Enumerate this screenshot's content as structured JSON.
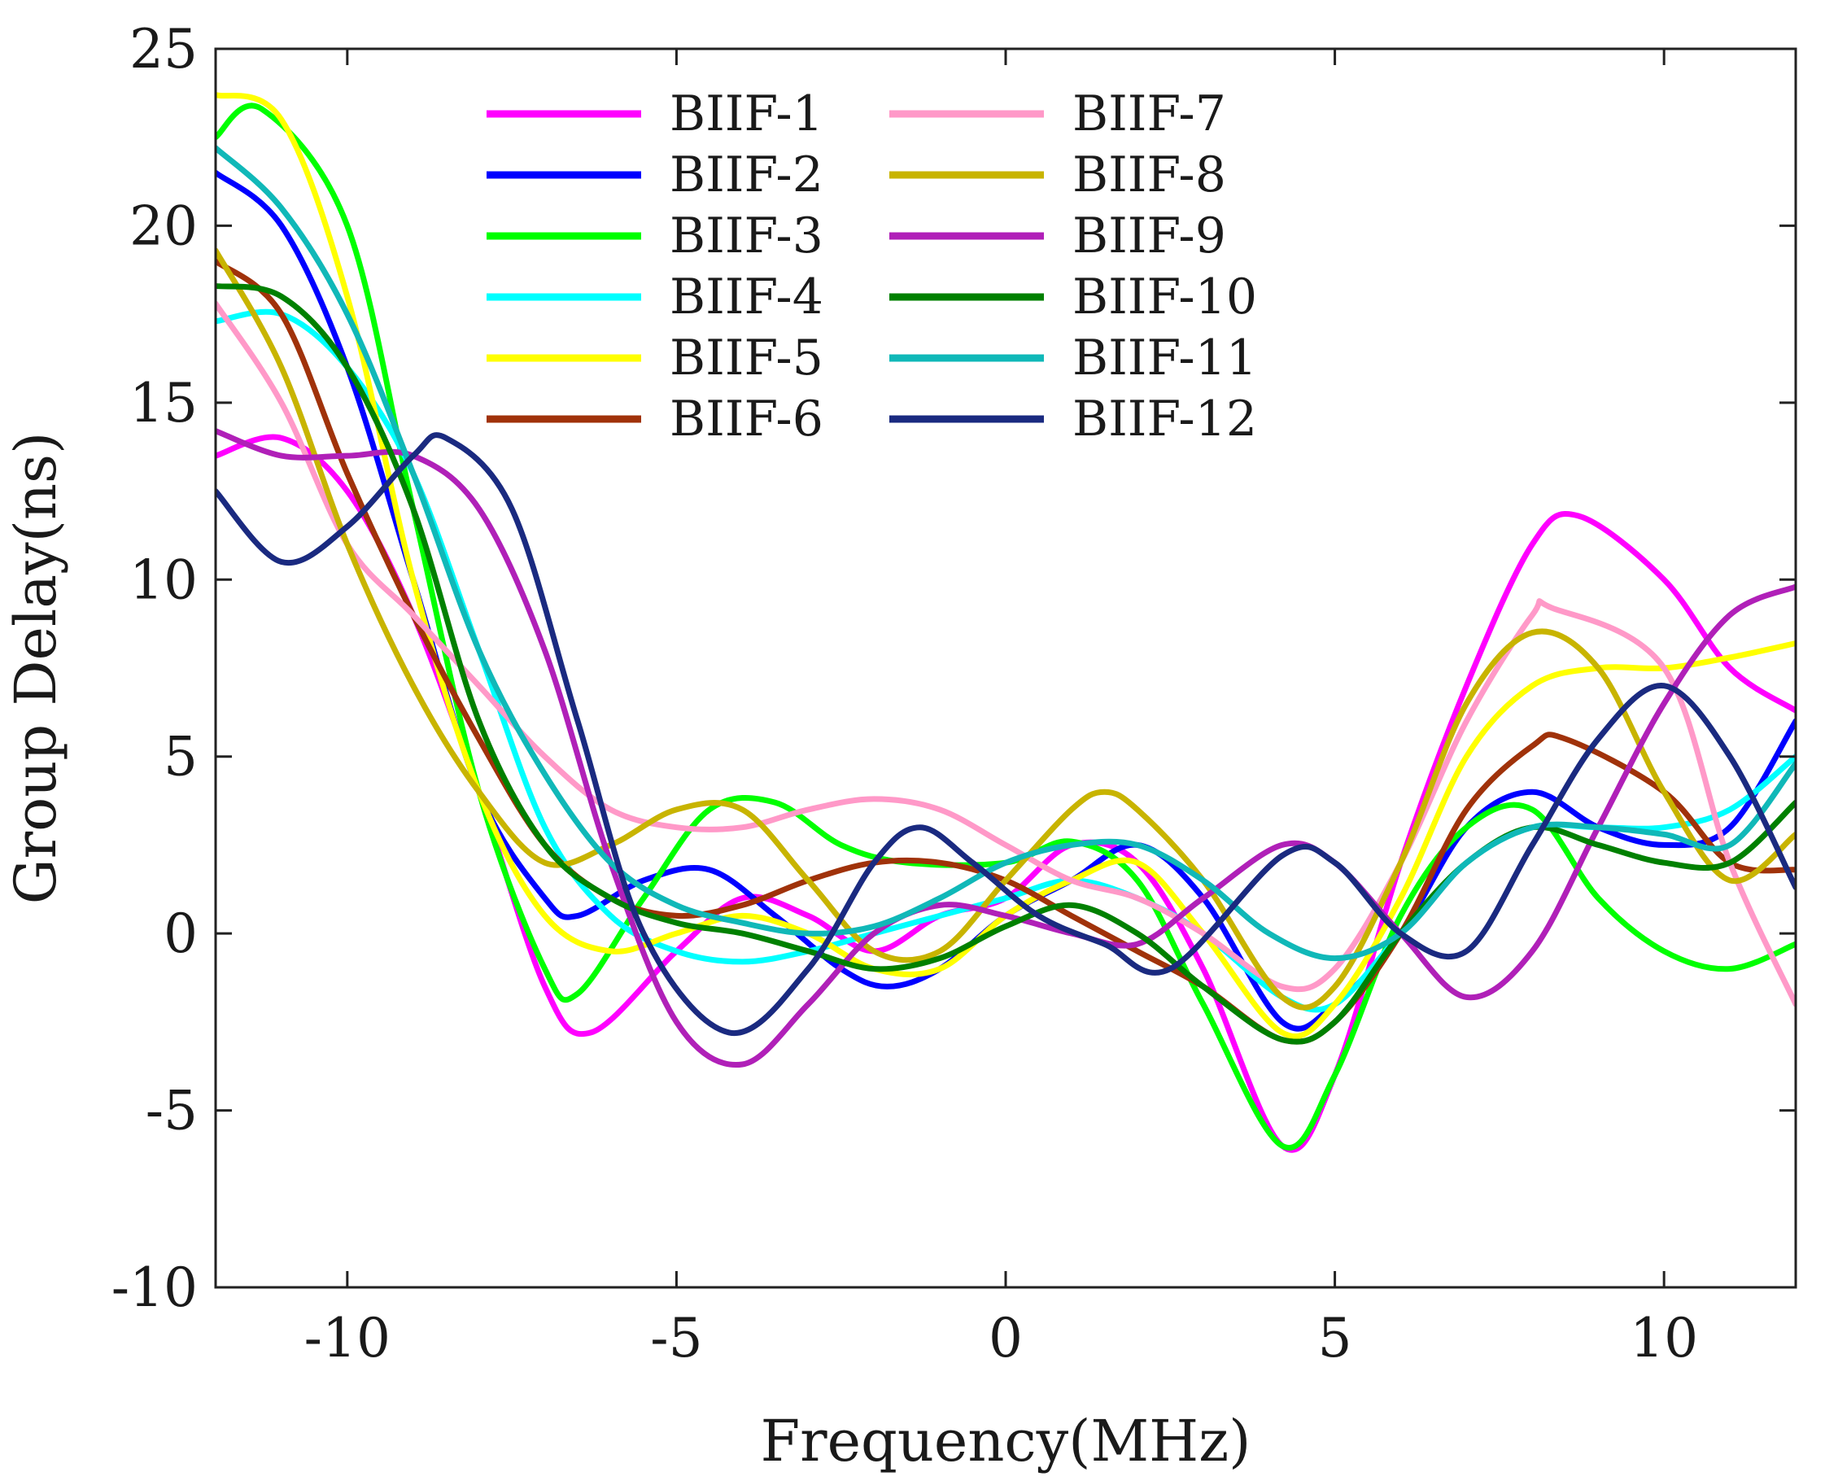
{
  "chart_data": {
    "type": "line",
    "title": "",
    "xlabel": "Frequency(MHz)",
    "ylabel": "Group Delay(ns)",
    "xlim": [
      -12,
      12
    ],
    "ylim": [
      -10,
      25
    ],
    "xticks": [
      -10,
      -5,
      0,
      5,
      10
    ],
    "xtick_labels": [
      "-10",
      "-5",
      "0",
      "5",
      "10"
    ],
    "yticks": [
      -10,
      -5,
      0,
      5,
      10,
      15,
      20,
      25
    ],
    "ytick_labels": [
      "-10",
      "-5",
      "0",
      "5",
      "10",
      "15",
      "20",
      "25"
    ],
    "grid": false,
    "legend_position": "top-center",
    "series": [
      {
        "name": "BIIF-1",
        "color": "#ff00ff",
        "x": [
          -12,
          -11,
          -10,
          -9,
          -8,
          -7,
          -6.3,
          -5,
          -4,
          -3,
          -2,
          -1,
          0,
          1,
          2,
          3,
          4.2,
          5,
          6,
          7,
          8,
          8.7,
          10,
          11,
          12
        ],
        "y": [
          13.5,
          14,
          12.5,
          9,
          4,
          -1.5,
          -2.8,
          -0.5,
          1,
          0.5,
          -0.5,
          0.5,
          1,
          2.5,
          2,
          -1,
          -6,
          -4,
          2,
          7,
          11,
          11.8,
          10,
          7.5,
          6.3
        ]
      },
      {
        "name": "BIIF-2",
        "color": "#0000ff",
        "x": [
          -12,
          -11,
          -10,
          -9,
          -8,
          -7,
          -6.5,
          -5.5,
          -4.5,
          -3.5,
          -2.5,
          -1.8,
          -1,
          0,
          1,
          2,
          3,
          4.2,
          5,
          6,
          7,
          8,
          9,
          10,
          11,
          12
        ],
        "y": [
          21.5,
          20,
          16,
          10,
          4,
          1,
          0.5,
          1.5,
          1.8,
          0.5,
          -1,
          -1.5,
          -1,
          0.5,
          1.5,
          2.5,
          1,
          -2.5,
          -2,
          0,
          3,
          4,
          3,
          2.5,
          3,
          6
        ]
      },
      {
        "name": "BIIF-3",
        "color": "#00ff00",
        "x": [
          -12,
          -11.3,
          -10,
          -9,
          -8,
          -7,
          -6.5,
          -5.5,
          -4.5,
          -3.5,
          -2.5,
          -1.5,
          0,
          1,
          2,
          3,
          4.2,
          5,
          6,
          7,
          8,
          9,
          10,
          11,
          12
        ],
        "y": [
          22.5,
          23.3,
          20,
          12,
          4,
          -1,
          -1.7,
          1,
          3.5,
          3.7,
          2.5,
          2,
          2,
          2.6,
          1.5,
          -2,
          -6,
          -4,
          0.5,
          3,
          3.5,
          1,
          -0.5,
          -1,
          -0.3
        ]
      },
      {
        "name": "BIIF-4",
        "color": "#00ffff",
        "x": [
          -12,
          -11,
          -10,
          -9,
          -8,
          -7,
          -6,
          -5,
          -4,
          -3,
          -2,
          -1,
          0,
          1,
          2,
          3,
          4.2,
          5,
          6,
          7,
          8,
          9,
          10,
          11,
          12
        ],
        "y": [
          17.3,
          17.5,
          16,
          13,
          8,
          3,
          0.5,
          -0.5,
          -0.8,
          -0.5,
          0,
          0.5,
          1,
          1.5,
          1,
          0,
          -1.8,
          -2,
          0,
          2,
          3,
          3,
          3,
          3.5,
          5
        ]
      },
      {
        "name": "BIIF-5",
        "color": "#ffff00",
        "x": [
          -12,
          -11,
          -10,
          -9,
          -8,
          -7,
          -6,
          -5,
          -4,
          -3,
          -2,
          -1,
          0,
          1,
          2,
          3,
          4.2,
          5,
          6,
          7,
          8,
          9,
          10,
          11,
          12
        ],
        "y": [
          23.7,
          23,
          18,
          10,
          4,
          0.5,
          -0.5,
          0,
          0.5,
          0,
          -1,
          -1,
          0.5,
          1.5,
          2,
          0,
          -2.8,
          -2,
          1,
          5,
          7,
          7.5,
          7.5,
          7.8,
          8.2
        ]
      },
      {
        "name": "BIIF-6",
        "color": "#a0320a",
        "x": [
          -12,
          -11,
          -10,
          -9,
          -8,
          -7,
          -6,
          -5,
          -4,
          -3,
          -2,
          -1,
          0,
          1,
          2,
          3,
          4.2,
          5,
          6,
          7,
          8,
          8.5,
          10,
          11,
          12
        ],
        "y": [
          19,
          17.5,
          13,
          9,
          5.5,
          2.5,
          1,
          0.5,
          0.8,
          1.5,
          2,
          2,
          1.5,
          0.5,
          -0.5,
          -1.5,
          -3,
          -2.5,
          0,
          3.5,
          5.3,
          5.5,
          4,
          2,
          1.8
        ]
      },
      {
        "name": "BIIF-7",
        "color": "#ff99c8",
        "x": [
          -12,
          -11,
          -10,
          -9,
          -8,
          -7,
          -6,
          -5,
          -4,
          -3,
          -2,
          -1,
          0,
          1,
          2,
          3,
          4.2,
          5,
          6,
          7,
          8,
          8.3,
          10,
          11,
          12
        ],
        "y": [
          17.8,
          15,
          11,
          9,
          7,
          5,
          3.5,
          3,
          3,
          3.5,
          3.8,
          3.5,
          2.5,
          1.5,
          1,
          0,
          -1.5,
          -1,
          2,
          6,
          9,
          9.2,
          7.5,
          2,
          -2
        ]
      },
      {
        "name": "BIIF-8",
        "color": "#c8b400",
        "x": [
          -12,
          -11,
          -10,
          -9,
          -8,
          -7,
          -6,
          -5,
          -4,
          -3,
          -2,
          -1,
          0,
          1,
          1.5,
          2,
          3,
          4.2,
          5,
          6,
          7,
          8,
          9,
          10,
          11,
          12
        ],
        "y": [
          19.3,
          16,
          11,
          7,
          4,
          2,
          2.5,
          3.5,
          3.5,
          1.5,
          -0.5,
          -0.5,
          1.5,
          3.5,
          4,
          3.5,
          1.5,
          -1.8,
          -1.5,
          2,
          6.5,
          8.5,
          7.5,
          4,
          1.5,
          2.8
        ]
      },
      {
        "name": "BIIF-9",
        "color": "#b020b8",
        "x": [
          -12,
          -11,
          -10,
          -9,
          -8,
          -7,
          -6,
          -5,
          -4,
          -3,
          -2,
          -1,
          0,
          1,
          2,
          3,
          4.2,
          5,
          6,
          7,
          8,
          9,
          10,
          11,
          12
        ],
        "y": [
          14.2,
          13.5,
          13.5,
          13.5,
          12,
          8,
          2,
          -2.5,
          -3.7,
          -2,
          0,
          0.8,
          0.5,
          0,
          -0.3,
          1,
          2.5,
          2,
          0,
          -1.8,
          -0.5,
          3,
          6.5,
          9,
          9.8
        ]
      },
      {
        "name": "BIIF-10",
        "color": "#008000",
        "x": [
          -12,
          -11,
          -10,
          -9,
          -8,
          -7,
          -6,
          -5,
          -4,
          -3,
          -2,
          -1,
          0,
          1,
          2,
          3,
          4.2,
          5,
          6,
          7,
          8,
          9,
          10,
          11,
          12
        ],
        "y": [
          18.3,
          18,
          16,
          12,
          6,
          2.5,
          1,
          0.3,
          0,
          -0.5,
          -1,
          -0.7,
          0.2,
          0.8,
          0,
          -1.5,
          -3,
          -2.5,
          0,
          2,
          3,
          2.5,
          2,
          2,
          3.7
        ]
      },
      {
        "name": "BIIF-11",
        "color": "#10b8b8",
        "x": [
          -12,
          -11,
          -10,
          -9,
          -8,
          -7,
          -6,
          -5,
          -4,
          -3,
          -2,
          -1,
          0,
          1,
          2,
          3,
          4,
          5,
          6,
          7,
          8,
          9,
          10,
          11,
          12
        ],
        "y": [
          22.2,
          20.5,
          17.5,
          13,
          8,
          4.5,
          2,
          0.8,
          0.3,
          0,
          0.2,
          1,
          2,
          2.5,
          2.5,
          1.5,
          0,
          -0.7,
          0,
          2,
          3,
          3,
          2.8,
          2.5,
          4.8
        ]
      },
      {
        "name": "BIIF-12",
        "color": "#1a2a80",
        "x": [
          -12,
          -11,
          -10,
          -9,
          -8.5,
          -7.5,
          -6.5,
          -5.5,
          -4.2,
          -3,
          -2,
          -1.3,
          -0.5,
          0.5,
          1.5,
          2.5,
          4.2,
          5,
          6,
          7,
          8,
          9,
          10,
          11,
          12
        ],
        "y": [
          12.5,
          10.5,
          11.5,
          13.5,
          14,
          12,
          6,
          0,
          -2.8,
          -1,
          2,
          3,
          2,
          0.5,
          -0.3,
          -1,
          2.2,
          2,
          0,
          -0.5,
          2.5,
          5.5,
          7,
          5,
          1.3
        ]
      }
    ]
  }
}
